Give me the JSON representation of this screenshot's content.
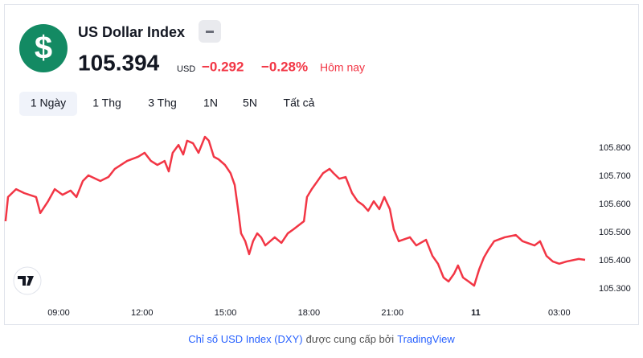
{
  "header": {
    "logo": "$",
    "title": "US Dollar Index",
    "price": "105.394",
    "currency": "USD",
    "change": "−0.292",
    "change_percent": "−0.28%",
    "period": "Hôm nay"
  },
  "tabs": [
    "1 Ngày",
    "1 Thg",
    "3 Thg",
    "1N",
    "5N",
    "Tất cả"
  ],
  "active_tab": 0,
  "chart_data": {
    "type": "line",
    "color": "#f23645",
    "x": [
      7.09,
      7.18,
      7.47,
      7.76,
      8.19,
      8.34,
      8.62,
      8.86,
      9.14,
      9.43,
      9.64,
      9.87,
      10.07,
      10.5,
      10.79,
      11.02,
      11.46,
      11.86,
      12.09,
      12.32,
      12.55,
      12.81,
      12.96,
      13.1,
      13.31,
      13.48,
      13.62,
      13.83,
      14.03,
      14.26,
      14.4,
      14.58,
      14.75,
      14.98,
      15.18,
      15.33,
      15.45,
      15.56,
      15.71,
      15.85,
      15.99,
      16.14,
      16.28,
      16.43,
      16.77,
      17.01,
      17.24,
      17.44,
      17.82,
      17.93,
      18.1,
      18.31,
      18.51,
      18.74,
      18.88,
      19.09,
      19.32,
      19.55,
      19.75,
      19.95,
      20.13,
      20.33,
      20.53,
      20.71,
      20.91,
      21.05,
      21.23,
      21.63,
      21.86,
      22.21,
      22.44,
      22.64,
      22.84,
      23.02,
      23.22,
      23.36,
      23.54,
      23.74,
      23.94,
      24.12,
      24.29,
      24.46,
      24.66,
      25.04,
      25.44,
      25.68,
      26.11,
      26.31,
      26.54,
      26.77,
      27.0,
      27.26,
      27.7,
      27.93
    ],
    "values": [
      105.54,
      105.626,
      105.654,
      105.64,
      105.626,
      105.569,
      105.611,
      105.654,
      105.634,
      105.649,
      105.626,
      105.683,
      105.703,
      105.683,
      105.697,
      105.726,
      105.754,
      105.769,
      105.783,
      105.754,
      105.74,
      105.754,
      105.717,
      105.783,
      105.811,
      105.777,
      105.826,
      105.817,
      105.783,
      105.84,
      105.826,
      105.769,
      105.76,
      105.74,
      105.711,
      105.669,
      105.583,
      105.497,
      105.469,
      105.423,
      105.469,
      105.497,
      105.483,
      105.454,
      105.483,
      105.463,
      105.497,
      105.511,
      105.54,
      105.626,
      105.654,
      105.683,
      105.711,
      105.726,
      105.711,
      105.691,
      105.697,
      105.64,
      105.611,
      105.597,
      105.577,
      105.611,
      105.583,
      105.626,
      105.583,
      105.511,
      105.469,
      105.483,
      105.454,
      105.474,
      105.417,
      105.389,
      105.34,
      105.326,
      105.354,
      105.383,
      105.34,
      105.326,
      105.311,
      105.369,
      105.411,
      105.44,
      105.469,
      105.483,
      105.491,
      105.469,
      105.454,
      105.469,
      105.417,
      105.397,
      105.389,
      105.397,
      105.406,
      105.403
    ],
    "xlim": [
      7.03,
      28.13
    ],
    "xticks": [
      {
        "value": 9,
        "label": "09:00"
      },
      {
        "value": 12,
        "label": "12:00"
      },
      {
        "value": 15,
        "label": "15:00"
      },
      {
        "value": 18,
        "label": "18:00"
      },
      {
        "value": 21,
        "label": "21:00"
      },
      {
        "value": 24,
        "label": "11"
      },
      {
        "value": 27,
        "label": "03:00"
      }
    ],
    "ylim": [
      105.25,
      105.87
    ],
    "yticks": [
      {
        "value": 105.8,
        "label": "105.800"
      },
      {
        "value": 105.7,
        "label": "105.700"
      },
      {
        "value": 105.6,
        "label": "105.600"
      },
      {
        "value": 105.5,
        "label": "105.500"
      },
      {
        "value": 105.4,
        "label": "105.400"
      },
      {
        "value": 105.3,
        "label": "105.300"
      }
    ]
  },
  "footer": {
    "link": "Chỉ số USD Index (DXY)",
    "text": "được cung cấp bởi",
    "brand": "TradingView"
  }
}
